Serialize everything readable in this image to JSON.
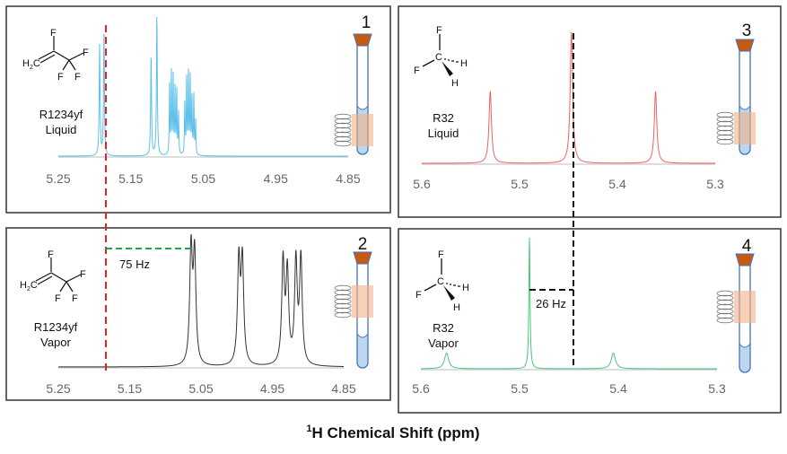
{
  "figure": {
    "xlabel_sup": "1",
    "xlabel": "H Chemical Shift (ppm)",
    "colors": {
      "liquid_r1234yf": "#5bc0eb",
      "vapor_r1234yf": "#333333",
      "liquid_r32": "#f06060",
      "vapor_r32": "#4cc47a",
      "red_guide": "#e82020",
      "green_guide": "#1aa64a",
      "tube": "#4472c4",
      "cap": "#c55a11",
      "coil_region": "#f4b183",
      "tube_liquid": "#bdd7ee"
    },
    "annotations": {
      "coupling_r1234yf": "75 Hz",
      "coupling_r32": "26 Hz"
    }
  },
  "molecules": {
    "r1234yf": {
      "h2c": "H",
      "h2c_sub": "2",
      "h2c_c": "C",
      "f": "F"
    },
    "r32": {
      "c": "C",
      "f": "F",
      "h": "H"
    }
  },
  "chart_data": [
    {
      "type": "line",
      "panel": "1",
      "name": "R1234yf",
      "state": "Liquid",
      "xlabel": "",
      "xlim": [
        5.25,
        4.85
      ],
      "ticks": [
        "5.25",
        "5.15",
        "5.05",
        "4.95",
        "4.85"
      ],
      "tick_values": [
        5.25,
        5.15,
        5.05,
        4.95,
        4.85
      ],
      "color": "#5bc0eb",
      "peaks": [
        [
          5.193,
          0.79,
          0.0007
        ],
        [
          5.187,
          0.9,
          0.0007
        ],
        [
          5.122,
          0.72,
          0.0007
        ],
        [
          5.114,
          1.0,
          0.0007
        ],
        [
          5.0965,
          0.5,
          0.0005
        ],
        [
          5.094,
          0.58,
          0.0005
        ],
        [
          5.0915,
          0.55,
          0.0005
        ],
        [
          5.089,
          0.46,
          0.0005
        ],
        [
          5.0866,
          0.46,
          0.0005
        ],
        [
          5.0841,
          0.3,
          0.0005
        ],
        [
          5.0755,
          0.38,
          0.0005
        ],
        [
          5.073,
          0.55,
          0.0005
        ],
        [
          5.0705,
          0.58,
          0.0005
        ],
        [
          5.068,
          0.55,
          0.0005
        ],
        [
          5.0656,
          0.42,
          0.0005
        ],
        [
          5.063,
          0.42,
          0.0005
        ],
        [
          5.0606,
          0.25,
          0.0005
        ]
      ]
    },
    {
      "type": "line",
      "panel": "2",
      "name": "R1234yf",
      "state": "Vapor",
      "xlabel": "",
      "xlim": [
        5.25,
        4.85
      ],
      "ticks": [
        "5.25",
        "5.15",
        "5.05",
        "4.95",
        "4.85"
      ],
      "tick_values": [
        5.25,
        5.15,
        5.05,
        4.95,
        4.85
      ],
      "color": "#333333",
      "peaks": [
        [
          5.064,
          0.78,
          0.0022
        ],
        [
          5.059,
          0.74,
          0.0022
        ],
        [
          4.997,
          0.7,
          0.0022
        ],
        [
          4.992,
          0.7,
          0.0022
        ],
        [
          4.935,
          0.7,
          0.0022
        ],
        [
          4.929,
          0.62,
          0.0022
        ],
        [
          4.917,
          0.7,
          0.0022
        ],
        [
          4.91,
          0.72,
          0.0022
        ]
      ]
    },
    {
      "type": "line",
      "panel": "3",
      "name": "R32",
      "state": "Liquid",
      "xlabel": "",
      "xlim": [
        5.6,
        5.3
      ],
      "ticks": [
        "5.6",
        "5.5",
        "5.4",
        "5.3"
      ],
      "tick_values": [
        5.6,
        5.5,
        5.4,
        5.3
      ],
      "color": "#f06060",
      "peaks": [
        [
          5.53,
          0.55,
          0.0015
        ],
        [
          5.447,
          1.0,
          0.0015
        ],
        [
          5.361,
          0.55,
          0.0015
        ]
      ]
    },
    {
      "type": "line",
      "panel": "4",
      "name": "R32",
      "state": "Vapor",
      "xlabel": "",
      "xlim": [
        5.6,
        5.3
      ],
      "ticks": [
        "5.6",
        "5.5",
        "5.4",
        "5.3"
      ],
      "tick_values": [
        5.6,
        5.5,
        5.4,
        5.3
      ],
      "color": "#4cc47a",
      "peaks": [
        [
          5.574,
          0.12,
          0.0025
        ],
        [
          5.49,
          1.0,
          0.0007
        ],
        [
          5.405,
          0.12,
          0.0025
        ]
      ]
    }
  ]
}
